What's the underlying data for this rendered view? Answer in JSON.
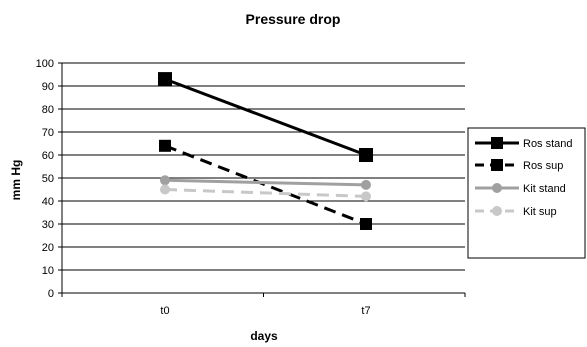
{
  "chart_data": {
    "type": "line",
    "title": "Pressure drop",
    "xlabel": "days",
    "ylabel": "mm Hg",
    "categories": [
      "t0",
      "t7"
    ],
    "ylim": [
      0,
      100
    ],
    "yticks": [
      0,
      10,
      20,
      30,
      40,
      50,
      60,
      70,
      80,
      90,
      100
    ],
    "grid": true,
    "legend_position": "right",
    "series": [
      {
        "name": "Ros stand",
        "values": [
          93,
          60
        ],
        "color": "#000000",
        "dash": "solid",
        "marker": "square-large"
      },
      {
        "name": "Ros sup",
        "values": [
          64,
          30
        ],
        "color": "#000000",
        "dash": "dashed",
        "marker": "square"
      },
      {
        "name": "Kit stand",
        "values": [
          49,
          47
        ],
        "color": "#a0a0a0",
        "dash": "solid",
        "marker": "circle"
      },
      {
        "name": "Kit sup",
        "values": [
          45,
          42
        ],
        "color": "#c8c8c8",
        "dash": "dashed",
        "marker": "circle"
      }
    ]
  }
}
